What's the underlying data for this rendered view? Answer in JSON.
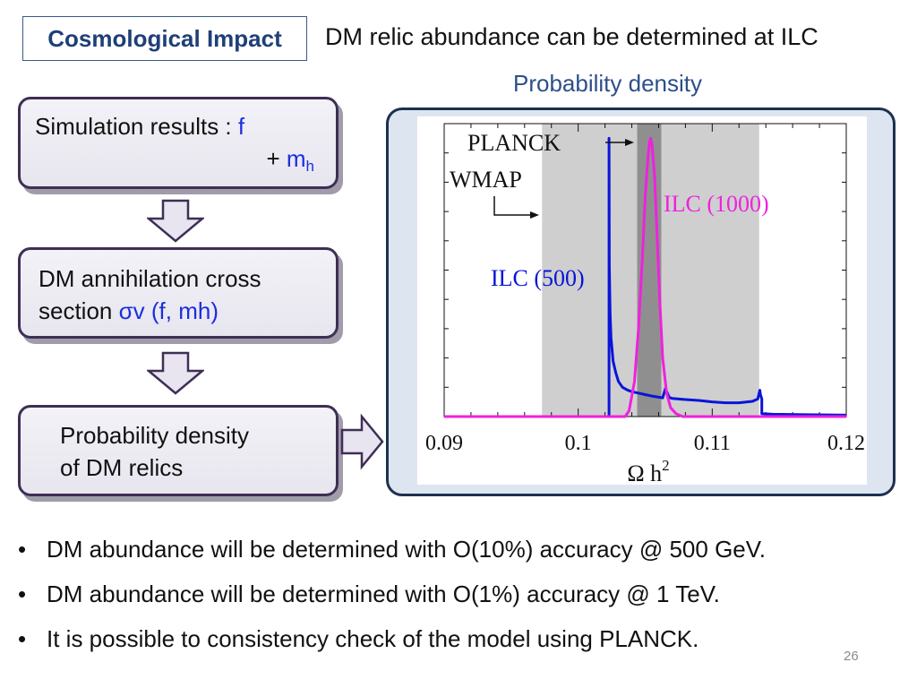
{
  "slide": {
    "title_box": "Cosmological Impact",
    "headline": "DM relic abundance can be determined at ILC",
    "plot_caption": "Probability density",
    "page_number": "26"
  },
  "flow": {
    "box1": {
      "text": "Simulation results : ",
      "var1": "f",
      "plus": "+ ",
      "var2": "m",
      "var2_sub": "h"
    },
    "box2": {
      "line1": "DM annihilation cross",
      "line2_prefix": "section ",
      "line2_expr": "σv (f, mh)"
    },
    "box3": {
      "line1": "Probability density",
      "line2": "of DM relics"
    }
  },
  "bullets": [
    "DM abundance will be determined with O(10%) accuracy @ 500 GeV.",
    "DM abundance will be determined with O(1%) accuracy @ 1 TeV.",
    "It is possible to consistency check of the model using PLANCK."
  ],
  "colors": {
    "ilc500": "#0a14d8",
    "ilc1000": "#ee22dd",
    "wmap_band": "#cfcfcf",
    "planck_band": "#8f8f8f",
    "accent": "#1f3f78"
  },
  "chart_data": {
    "type": "line",
    "xlabel_main": "Ω h",
    "xlabel_sup": "2",
    "xlim": [
      0.09,
      0.12
    ],
    "ylim": [
      0,
      1.0
    ],
    "x_ticks": [
      0.09,
      0.1,
      0.11,
      0.12
    ],
    "x_tick_labels": [
      "0.09",
      "0.1",
      "0.11",
      "0.12"
    ],
    "bands": [
      {
        "name": "WMAP",
        "range": [
          0.0973,
          0.1135
        ]
      },
      {
        "name": "PLANCK",
        "range": [
          0.1044,
          0.1062
        ]
      }
    ],
    "annotations": {
      "planck": "PLANCK",
      "wmap": "WMAP"
    },
    "series": [
      {
        "name": "ILC (500)",
        "x": [
          0.09,
          0.1023,
          0.1023,
          0.10232,
          0.10238,
          0.10245,
          0.1026,
          0.1028,
          0.103,
          0.1033,
          0.1037,
          0.104,
          0.1045,
          0.105,
          0.1055,
          0.106,
          0.1063,
          0.1065,
          0.1068,
          0.107,
          0.1075,
          0.108,
          0.109,
          0.11,
          0.111,
          0.112,
          0.113,
          0.1134,
          0.11355,
          0.1136,
          0.1137,
          0.1137,
          0.1145,
          0.12
        ],
        "y": [
          0.0,
          0.0,
          0.95,
          0.52,
          0.35,
          0.27,
          0.19,
          0.15,
          0.12,
          0.1,
          0.09,
          0.085,
          0.08,
          0.075,
          0.07,
          0.066,
          0.064,
          0.095,
          0.065,
          0.062,
          0.06,
          0.058,
          0.055,
          0.05,
          0.047,
          0.047,
          0.052,
          0.06,
          0.09,
          0.075,
          0.06,
          0.01,
          0.008,
          0.005
        ]
      },
      {
        "name": "ILC (1000)",
        "x": [
          0.09,
          0.1035,
          0.1038,
          0.1042,
          0.1045,
          0.1048,
          0.105,
          0.1052,
          0.1053,
          0.1054,
          0.1055,
          0.1057,
          0.1059,
          0.1061,
          0.1063,
          0.1066,
          0.1069,
          0.1073,
          0.1078,
          0.12
        ],
        "y": [
          0.0,
          0.0,
          0.02,
          0.12,
          0.3,
          0.55,
          0.75,
          0.88,
          0.93,
          0.95,
          0.93,
          0.82,
          0.6,
          0.38,
          0.2,
          0.08,
          0.03,
          0.01,
          0.0,
          0.0
        ]
      }
    ]
  }
}
